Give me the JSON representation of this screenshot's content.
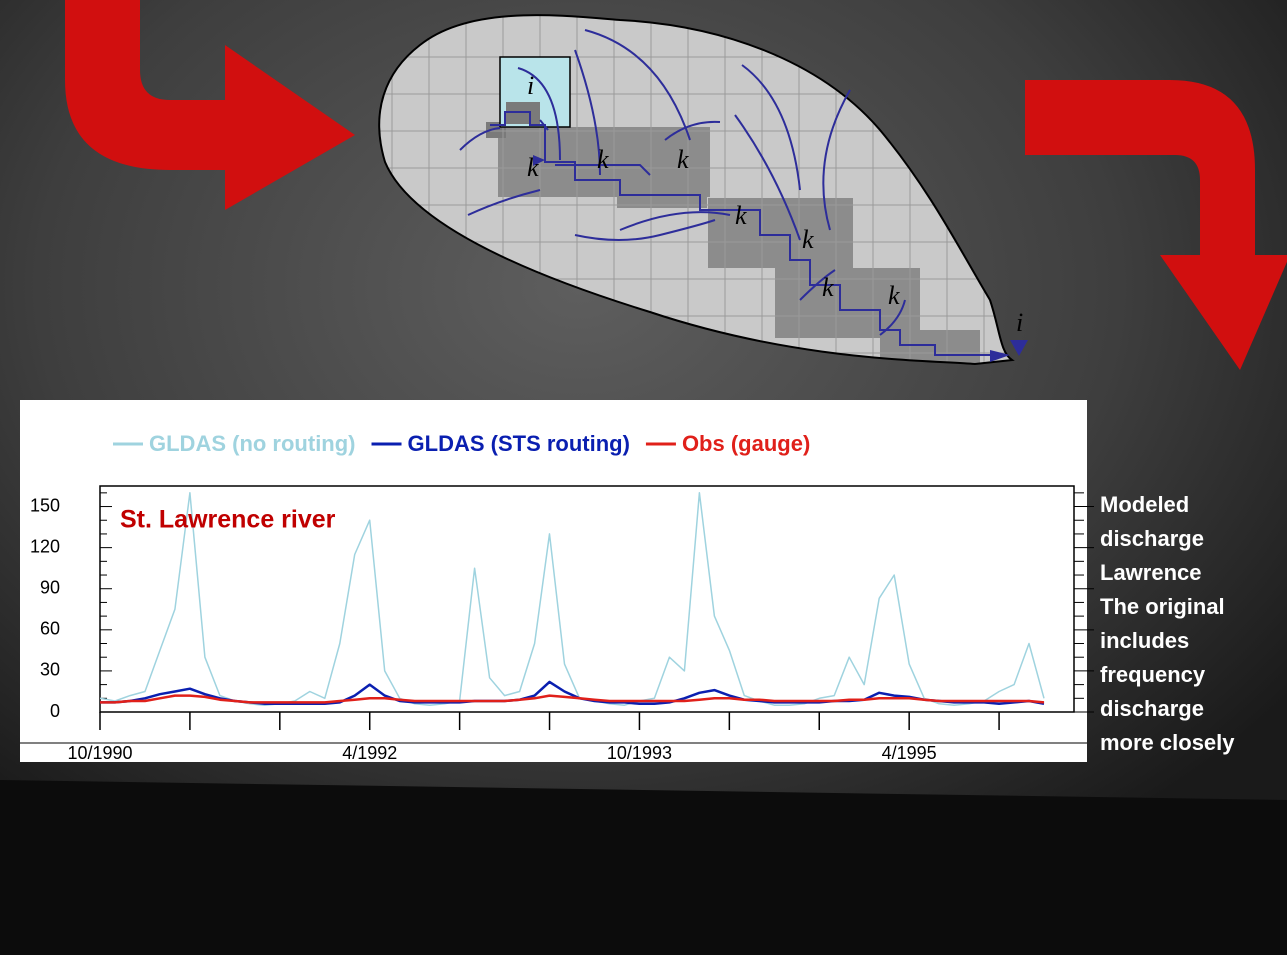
{
  "diagram": {
    "labels": [
      "i",
      "k",
      "k",
      "k",
      "k",
      "k",
      "k",
      "k",
      "i"
    ]
  },
  "side_text": [
    "Modeled",
    "discharge",
    "Lawrence",
    "The  original",
    "includes",
    "frequency",
    "discharge",
    "more closely"
  ],
  "chart_data": {
    "type": "line",
    "title": "St. Lawrence river",
    "x": [
      "1990-10",
      "1990-11",
      "1990-12",
      "1991-01",
      "1991-02",
      "1991-03",
      "1991-04",
      "1991-05",
      "1991-06",
      "1991-07",
      "1991-08",
      "1991-09",
      "1991-10",
      "1991-11",
      "1991-12",
      "1992-01",
      "1992-02",
      "1992-03",
      "1992-04",
      "1992-05",
      "1992-06",
      "1992-07",
      "1992-08",
      "1992-09",
      "1992-10",
      "1992-11",
      "1992-12",
      "1993-01",
      "1993-02",
      "1993-03",
      "1993-04",
      "1993-05",
      "1993-06",
      "1993-07",
      "1993-08",
      "1993-09",
      "1993-10",
      "1993-11",
      "1993-12",
      "1994-01",
      "1994-02",
      "1994-03",
      "1994-04",
      "1994-05",
      "1994-06",
      "1994-07",
      "1994-08",
      "1994-09",
      "1994-10",
      "1994-11",
      "1994-12",
      "1995-01",
      "1995-02",
      "1995-03",
      "1995-04",
      "1995-05",
      "1995-06",
      "1995-07",
      "1995-08",
      "1995-09",
      "1995-10",
      "1995-11",
      "1995-12",
      "1996-01"
    ],
    "series": [
      {
        "name": "GLDAS (no routing)",
        "color": "#9fd3df",
        "values": [
          10,
          8,
          12,
          15,
          45,
          75,
          160,
          40,
          12,
          8,
          6,
          5,
          6,
          8,
          15,
          10,
          50,
          115,
          140,
          30,
          10,
          6,
          5,
          6,
          8,
          105,
          25,
          12,
          15,
          50,
          130,
          35,
          10,
          8,
          6,
          5,
          8,
          10,
          40,
          30,
          160,
          70,
          45,
          12,
          8,
          5,
          5,
          6,
          10,
          12,
          40,
          20,
          83,
          100,
          35,
          10,
          6,
          5,
          6,
          8,
          15,
          20,
          50,
          10
        ]
      },
      {
        "name": "GLDAS (STS routing)",
        "color": "#0a1fb0",
        "values": [
          7,
          7,
          8,
          10,
          13,
          15,
          17,
          13,
          10,
          8,
          7,
          6,
          6,
          6,
          6,
          6,
          7,
          12,
          20,
          12,
          8,
          7,
          7,
          7,
          7,
          8,
          8,
          8,
          9,
          12,
          22,
          15,
          10,
          8,
          7,
          7,
          6,
          6,
          7,
          10,
          14,
          16,
          12,
          9,
          8,
          7,
          7,
          7,
          7,
          8,
          8,
          9,
          14,
          12,
          11,
          9,
          8,
          7,
          7,
          7,
          6,
          7,
          8,
          6
        ]
      },
      {
        "name": "Obs (gauge)",
        "color": "#e0201a",
        "values": [
          7,
          7,
          8,
          8,
          10,
          12,
          12,
          11,
          9,
          8,
          7,
          7,
          7,
          7,
          7,
          7,
          8,
          9,
          10,
          10,
          9,
          8,
          8,
          8,
          8,
          8,
          8,
          8,
          9,
          10,
          12,
          11,
          10,
          9,
          8,
          8,
          8,
          8,
          8,
          8,
          9,
          10,
          10,
          9,
          9,
          8,
          8,
          8,
          8,
          8,
          9,
          9,
          10,
          10,
          10,
          9,
          8,
          8,
          8,
          8,
          8,
          8,
          8,
          7
        ]
      }
    ],
    "xlim": [
      "1990-10",
      "1996-03"
    ],
    "xticks": [
      {
        "value": "1990-10",
        "label": "10/1990"
      },
      {
        "value": "1992-04",
        "label": "4/1992"
      },
      {
        "value": "1993-10",
        "label": "10/1993"
      },
      {
        "value": "1995-04",
        "label": "4/1995"
      }
    ],
    "xminorticks": [
      "1991-04",
      "1991-10",
      "1992-10",
      "1993-04",
      "1994-04",
      "1994-10",
      "1995-10"
    ],
    "ylim": [
      0,
      165
    ],
    "yticks": [
      0,
      30,
      60,
      90,
      120,
      150
    ],
    "yminorticks": [
      10,
      20,
      40,
      50,
      70,
      80,
      100,
      110,
      130,
      140,
      160
    ],
    "grid": false,
    "legend": "top"
  }
}
